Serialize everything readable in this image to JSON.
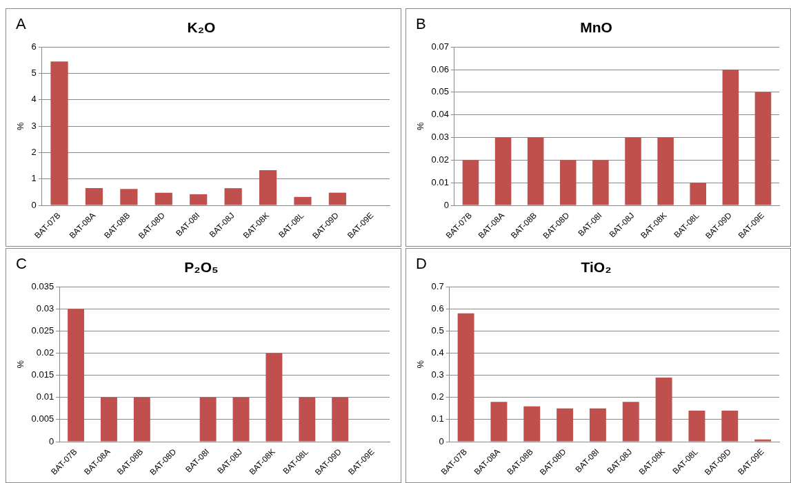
{
  "chart_data": [
    {
      "type": "bar",
      "title": "K₂O",
      "ylabel": "%",
      "annotations": [
        "A"
      ],
      "categories": [
        "BAT-07B",
        "BAT-08A",
        "BAT-08B",
        "BAT-08D",
        "BAT-08I",
        "BAT-08J",
        "BAT-08K",
        "BAT-08L",
        "BAT-09D",
        "BAT-09E"
      ],
      "values": [
        5.45,
        0.65,
        0.62,
        0.48,
        0.42,
        0.65,
        1.33,
        0.32,
        0.48,
        null
      ],
      "color": "#c0504d",
      "ylim": [
        0,
        6
      ],
      "yticks": [
        0,
        1,
        2,
        3,
        4,
        5,
        6
      ],
      "grid": "y"
    },
    {
      "type": "bar",
      "title": "MnO",
      "ylabel": "%",
      "annotations": [
        "B"
      ],
      "categories": [
        "BAT-07B",
        "BAT-08A",
        "BAT-08B",
        "BAT-08D",
        "BAT-08I",
        "BAT-08J",
        "BAT-08K",
        "BAT-08L",
        "BAT-09D",
        "BAT-09E"
      ],
      "values": [
        0.02,
        0.03,
        0.03,
        0.02,
        0.02,
        0.03,
        0.03,
        0.01,
        0.06,
        0.05
      ],
      "color": "#c0504d",
      "ylim": [
        0,
        0.07
      ],
      "yticks": [
        0,
        0.01,
        0.02,
        0.03,
        0.04,
        0.05,
        0.06,
        0.07
      ],
      "grid": "y"
    },
    {
      "type": "bar",
      "title": "P₂O₅",
      "ylabel": "%",
      "annotations": [
        "C"
      ],
      "categories": [
        "BAT-07B",
        "BAT-08A",
        "BAT-08B",
        "BAT-08D",
        "BAT-08I",
        "BAT-08J",
        "BAT-08K",
        "BAT-08L",
        "BAT-09D",
        "BAT-09E"
      ],
      "values": [
        0.03,
        0.01,
        0.01,
        null,
        0.01,
        0.01,
        0.02,
        0.01,
        0.01,
        null
      ],
      "color": "#c0504d",
      "ylim": [
        0,
        0.035
      ],
      "yticks": [
        0,
        0.005,
        0.01,
        0.015,
        0.02,
        0.025,
        0.03,
        0.035
      ],
      "grid": "y"
    },
    {
      "type": "bar",
      "title": "TiO₂",
      "ylabel": "%",
      "annotations": [
        "D"
      ],
      "categories": [
        "BAT-07B",
        "BAT-08A",
        "BAT-08B",
        "BAT-08D",
        "BAT-08I",
        "BAT-08J",
        "BAT-08K",
        "BAT-08L",
        "BAT-09D",
        "BAT-09E"
      ],
      "values": [
        0.58,
        0.18,
        0.16,
        0.15,
        0.15,
        0.18,
        0.29,
        0.14,
        0.14,
        0.01
      ],
      "color": "#c0504d",
      "ylim": [
        0,
        0.7
      ],
      "yticks": [
        0,
        0.1,
        0.2,
        0.3,
        0.4,
        0.5,
        0.6,
        0.7
      ],
      "grid": "y"
    }
  ]
}
